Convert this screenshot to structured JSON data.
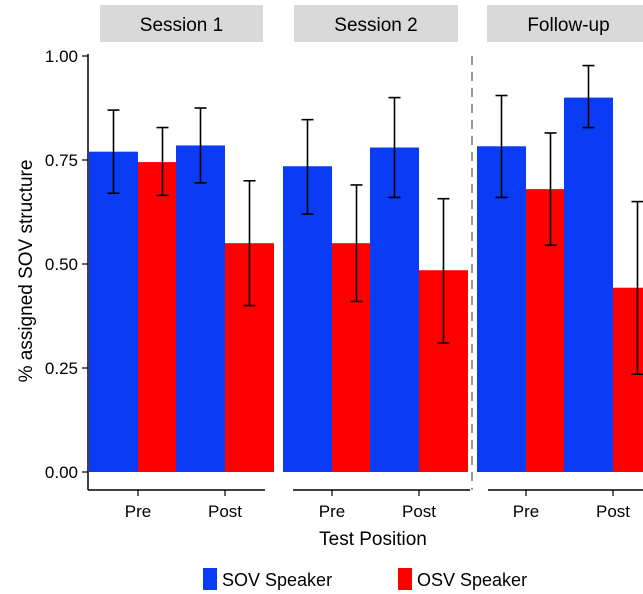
{
  "chart_data": {
    "type": "bar",
    "ylabel": "% assigned SOV structure",
    "xlabel": "Test Position",
    "ylim": [
      0,
      1
    ],
    "y_ticks": [
      "0.00",
      "0.25",
      "0.50",
      "0.75",
      "1.00"
    ],
    "y_tick_values": [
      0,
      0.25,
      0.5,
      0.75,
      1.0
    ],
    "grid": false,
    "legend_position": "bottom",
    "colors": {
      "sov": "#0a3cf5",
      "osv": "#ff0000",
      "facet_strip": "#d9d9d9"
    },
    "legend": [
      {
        "key": "sov",
        "label": "SOV Speaker"
      },
      {
        "key": "osv",
        "label": "OSV Speaker"
      }
    ],
    "facets": [
      {
        "title": "Session 1",
        "categories": [
          "Pre",
          "Post"
        ],
        "series": [
          {
            "key": "sov",
            "values": [
              0.77,
              0.785
            ],
            "err_low": [
              0.67,
              0.695
            ],
            "err_high": [
              0.87,
              0.875
            ]
          },
          {
            "key": "osv",
            "values": [
              0.745,
              0.55
            ],
            "err_low": [
              0.665,
              0.4
            ],
            "err_high": [
              0.828,
              0.7
            ]
          }
        ]
      },
      {
        "title": "Session 2",
        "categories": [
          "Pre",
          "Post"
        ],
        "series": [
          {
            "key": "sov",
            "values": [
              0.735,
              0.78
            ],
            "err_low": [
              0.62,
              0.66
            ],
            "err_high": [
              0.847,
              0.9
            ]
          },
          {
            "key": "osv",
            "values": [
              0.55,
              0.485
            ],
            "err_low": [
              0.41,
              0.31
            ],
            "err_high": [
              0.69,
              0.657
            ]
          }
        ]
      },
      {
        "title": "Follow-up",
        "categories": [
          "Pre",
          "Post"
        ],
        "series": [
          {
            "key": "sov",
            "values": [
              0.783,
              0.9
            ],
            "err_low": [
              0.66,
              0.828
            ],
            "err_high": [
              0.905,
              0.977
            ]
          },
          {
            "key": "osv",
            "values": [
              0.68,
              0.443
            ],
            "err_low": [
              0.545,
              0.235
            ],
            "err_high": [
              0.815,
              0.65
            ]
          }
        ]
      }
    ]
  }
}
